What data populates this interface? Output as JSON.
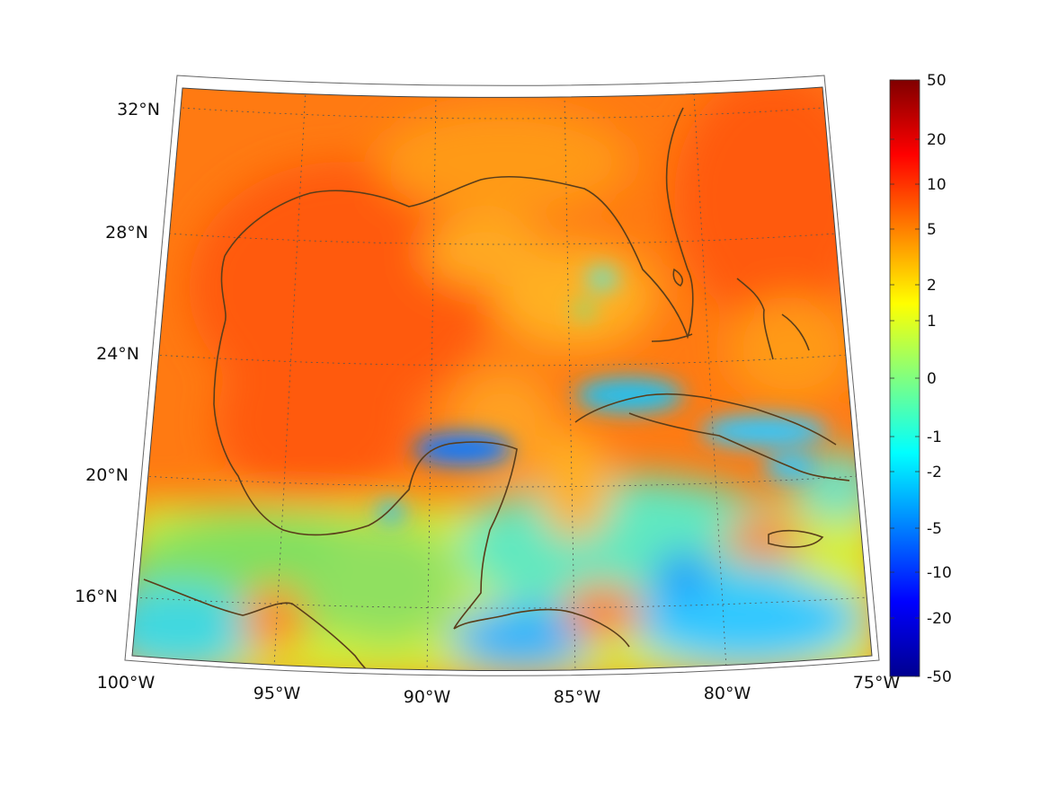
{
  "map": {
    "projection": "conic",
    "lat_labels": [
      "32°N",
      "28°N",
      "24°N",
      "20°N",
      "16°N"
    ],
    "lon_labels": [
      "100°W",
      "95°W",
      "90°W",
      "85°W",
      "80°W",
      "75°W"
    ],
    "grid": true,
    "coastline_color": "#5a3d1a"
  },
  "colorbar": {
    "colormap": "jet",
    "tick_labels": [
      "50",
      "20",
      "10",
      "5",
      "2",
      "1",
      "0",
      "-1",
      "-2",
      "-5",
      "-10",
      "-20",
      "-50"
    ],
    "colors": [
      "#00008f",
      "#0000ff",
      "#0080ff",
      "#00ffff",
      "#80ff80",
      "#ffff00",
      "#ff8000",
      "#ff0000",
      "#800000"
    ]
  }
}
